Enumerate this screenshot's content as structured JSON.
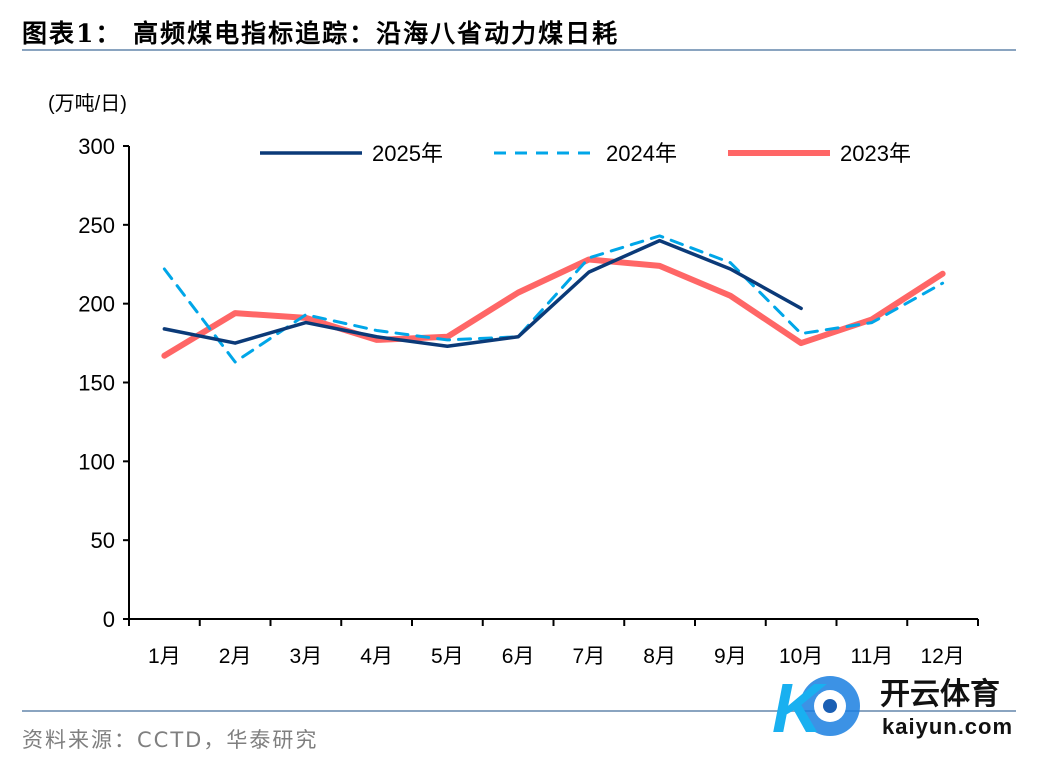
{
  "header": {
    "title": "图表1：  高频煤电指标追踪：沿海八省动力煤日耗"
  },
  "footer": {
    "source": "资料来源：CCTD，华泰研究"
  },
  "watermark": {
    "brand_cn": "开云体育",
    "brand_url": "kaiyun.com"
  },
  "chart_data": {
    "type": "line",
    "ylabel": "(万吨/日)",
    "ylim": [
      0,
      300
    ],
    "yticks": [
      0,
      50,
      100,
      150,
      200,
      250,
      300
    ],
    "categories": [
      "1月",
      "2月",
      "3月",
      "4月",
      "5月",
      "6月",
      "7月",
      "8月",
      "9月",
      "10月",
      "11月",
      "12月"
    ],
    "legend_position": "top",
    "grid": false,
    "series": [
      {
        "name": "2025年",
        "color": "#0b3a78",
        "style": "solid",
        "values": [
          184,
          175,
          188,
          179,
          173,
          179,
          220,
          240,
          222,
          197,
          null,
          null
        ]
      },
      {
        "name": "2024年",
        "color": "#00a6e8",
        "style": "dashed",
        "values": [
          222,
          163,
          193,
          183,
          177,
          179,
          229,
          243,
          226,
          181,
          188,
          213
        ]
      },
      {
        "name": "2023年",
        "color": "#ff6666",
        "style": "solid-thick",
        "values": [
          167,
          194,
          191,
          177,
          179,
          207,
          228,
          224,
          205,
          175,
          190,
          219
        ]
      }
    ]
  }
}
